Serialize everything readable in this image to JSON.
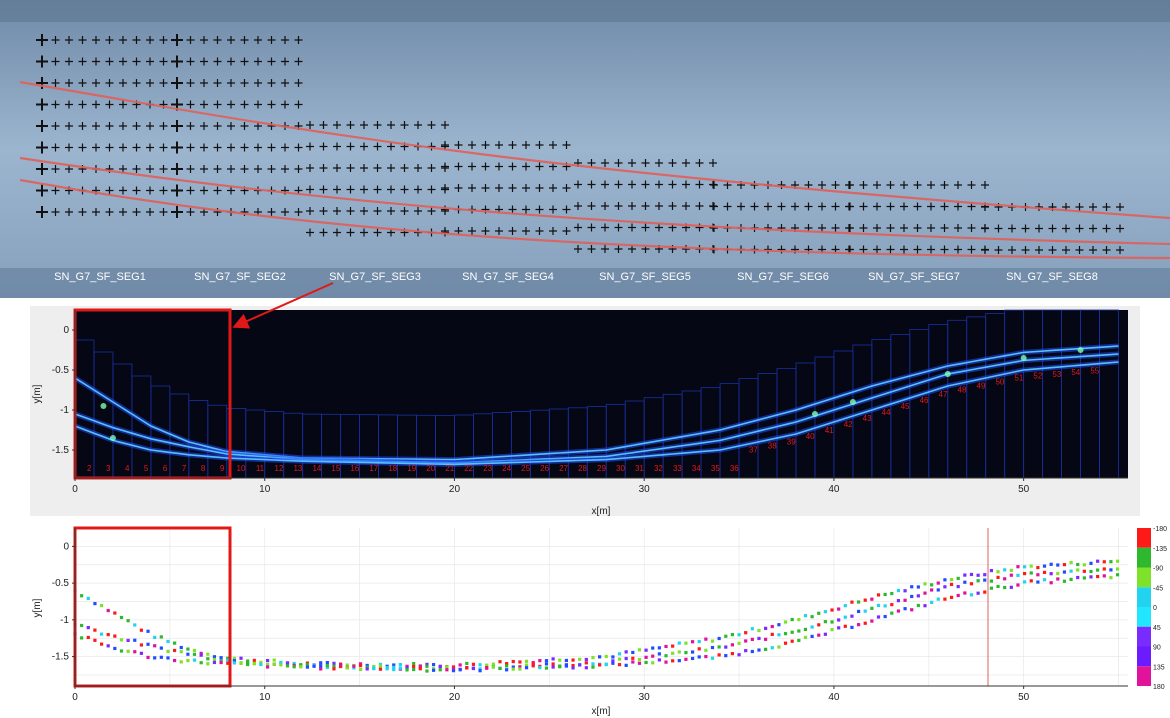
{
  "photo": {
    "segment_labels": [
      "SN_G7_SF_SEG1",
      "SN_G7_SF_SEG2",
      "SN_G7_SF_SEG3",
      "SN_G7_SF_SEG4",
      "SN_G7_SF_SEG5",
      "SN_G7_SF_SEG6",
      "SN_G7_SF_SEG7",
      "SN_G7_SF_SEG8"
    ]
  },
  "chart_data": [
    {
      "type": "heatmap",
      "xlabel": "x[m]",
      "ylabel": "y[m]",
      "xlim": [
        0,
        55.5
      ],
      "ylim": [
        -1.85,
        0.25
      ],
      "xticks": [
        "0",
        "10",
        "20",
        "30",
        "40",
        "50"
      ],
      "yticks": [
        "0",
        "-0.5",
        "-1",
        "-1.5"
      ],
      "cell_numbers": [
        "2",
        "3",
        "4",
        "5",
        "6",
        "7",
        "8",
        "9",
        "10",
        "11",
        "12",
        "13",
        "14",
        "15",
        "16",
        "17",
        "18",
        "19",
        "20",
        "21",
        "22",
        "23",
        "24",
        "25",
        "26",
        "27",
        "28",
        "29",
        "30",
        "31",
        "32",
        "33",
        "34",
        "35",
        "36",
        "37",
        "38",
        "39",
        "40",
        "41",
        "42",
        "43",
        "44",
        "45",
        "46",
        "47",
        "48",
        "49",
        "50",
        "51",
        "52",
        "53",
        "54",
        "55"
      ],
      "traces": [
        {
          "x": [
            0,
            2,
            4,
            6,
            8,
            12,
            20,
            28,
            34,
            38,
            42,
            46,
            50,
            55
          ],
          "y": [
            -0.6,
            -0.9,
            -1.2,
            -1.4,
            -1.52,
            -1.6,
            -1.62,
            -1.5,
            -1.25,
            -1.0,
            -0.7,
            -0.45,
            -0.28,
            -0.2
          ]
        },
        {
          "x": [
            0,
            2,
            4,
            6,
            8,
            12,
            20,
            28,
            34,
            38,
            42,
            46,
            50,
            55
          ],
          "y": [
            -1.05,
            -1.22,
            -1.36,
            -1.46,
            -1.55,
            -1.62,
            -1.66,
            -1.58,
            -1.38,
            -1.15,
            -0.85,
            -0.55,
            -0.38,
            -0.3
          ]
        },
        {
          "x": [
            0,
            2,
            4,
            6,
            8,
            12,
            20,
            28,
            34,
            38,
            42,
            46,
            50,
            55
          ],
          "y": [
            -1.2,
            -1.38,
            -1.5,
            -1.56,
            -1.6,
            -1.64,
            -1.68,
            -1.62,
            -1.5,
            -1.3,
            -1.0,
            -0.7,
            -0.5,
            -0.4
          ]
        }
      ]
    },
    {
      "type": "scatter",
      "xlabel": "x[m]",
      "ylabel": "y[m]",
      "xlim": [
        0,
        55.5
      ],
      "ylim": [
        -1.9,
        0.25
      ],
      "xticks": [
        "0",
        "10",
        "20",
        "30",
        "40",
        "50"
      ],
      "yticks": [
        "0",
        "-0.5",
        "-1",
        "-1.5"
      ],
      "colorbar_ticks": [
        "-180",
        "-135",
        "-90",
        "-45",
        "0",
        "45",
        "90",
        "135",
        "180"
      ],
      "colorbar_colors": [
        "#ff1a1a",
        "#2db82d",
        "#7fe22a",
        "#22d3f0",
        "#22e5ff",
        "#7a2bff",
        "#6a1cff",
        "#e0139a",
        "#ff1a1a"
      ]
    }
  ]
}
